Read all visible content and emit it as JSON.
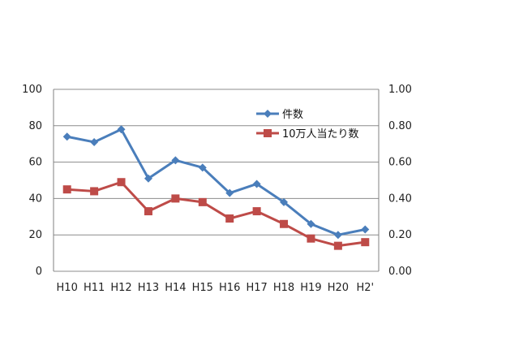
{
  "chart_data": {
    "type": "line",
    "title": "",
    "categories": [
      "H10",
      "H11",
      "H12",
      "H13",
      "H14",
      "H15",
      "H16",
      "H17",
      "H18",
      "H19",
      "H20",
      "H2'"
    ],
    "series": [
      {
        "name": "件数",
        "axis": "left",
        "color": "#4a7ebb",
        "marker": "diamond",
        "values": [
          74,
          71,
          78,
          51,
          61,
          57,
          43,
          48,
          38,
          26,
          20,
          23
        ]
      },
      {
        "name": "10万人当たり数",
        "axis": "right",
        "color": "#be4b48",
        "marker": "square",
        "values": [
          0.45,
          0.44,
          0.49,
          0.33,
          0.4,
          0.38,
          0.29,
          0.33,
          0.26,
          0.18,
          0.14,
          0.16
        ]
      }
    ],
    "y_left": {
      "min": 0,
      "max": 100,
      "ticks": [
        "0",
        "20",
        "40",
        "60",
        "80",
        "100"
      ]
    },
    "y_right": {
      "min": 0,
      "max": 1.0,
      "ticks": [
        "0.00",
        "0.20",
        "0.40",
        "0.60",
        "0.80",
        "1.00"
      ]
    },
    "grid": true,
    "legend_position": "top-right"
  }
}
